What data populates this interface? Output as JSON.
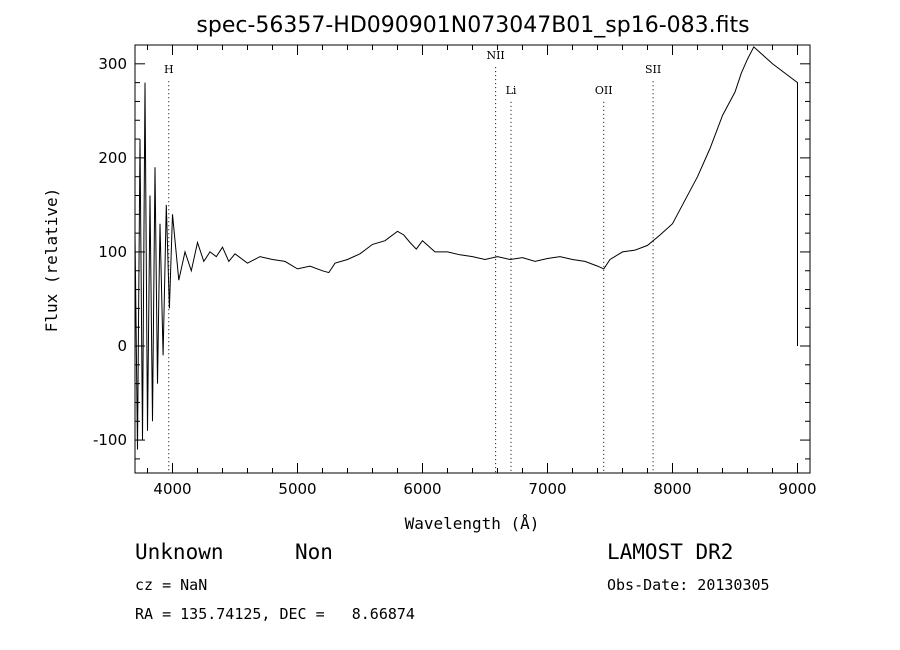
{
  "chart_data": {
    "type": "line",
    "title": "spec-56357-HD090901N073047B01_sp16-083.fits",
    "xlabel": "Wavelength (Å)",
    "ylabel": "Flux (relative)",
    "xlim": [
      3700,
      9100
    ],
    "ylim": [
      -135,
      320
    ],
    "x_ticks": [
      4000,
      5000,
      6000,
      7000,
      8000,
      9000
    ],
    "y_ticks": [
      -100,
      0,
      100,
      200,
      300
    ],
    "grid": false,
    "line_color": "#000000",
    "series": [
      {
        "x": [
          3700,
          3720,
          3740,
          3760,
          3780,
          3800,
          3820,
          3840,
          3860,
          3880,
          3900,
          3925,
          3950,
          3975,
          4000,
          4050,
          4100,
          4150,
          4200,
          4250,
          4300,
          4350,
          4400,
          4450,
          4500,
          4600,
          4700,
          4800,
          4900,
          5000,
          5100,
          5200,
          5250,
          5300,
          5400,
          5500,
          5600,
          5700,
          5800,
          5850,
          5900,
          5950,
          6000,
          6100,
          6200,
          6300,
          6400,
          6500,
          6600,
          6700,
          6800,
          6900,
          7000,
          7100,
          7200,
          7300,
          7400,
          7450,
          7500,
          7600,
          7700,
          7800,
          7900,
          8000,
          8100,
          8200,
          8300,
          8400,
          8500,
          8550,
          8600,
          8650,
          8700,
          8800,
          9000,
          9000
        ],
        "y": [
          120,
          -110,
          220,
          -100,
          280,
          -90,
          160,
          -80,
          190,
          -40,
          130,
          -10,
          150,
          40,
          140,
          70,
          100,
          80,
          110,
          90,
          100,
          95,
          105,
          90,
          98,
          88,
          95,
          92,
          90,
          82,
          85,
          80,
          78,
          88,
          92,
          98,
          108,
          112,
          122,
          118,
          110,
          103,
          112,
          100,
          100,
          97,
          95,
          92,
          95,
          92,
          94,
          90,
          93,
          95,
          92,
          90,
          85,
          82,
          92,
          100,
          102,
          107,
          118,
          130,
          155,
          180,
          210,
          245,
          270,
          290,
          305,
          318,
          312,
          300,
          280,
          0
        ]
      }
    ],
    "annotations": [
      {
        "label": "H",
        "x": 3970,
        "y": 290
      },
      {
        "label": "NII",
        "x": 6585,
        "y": 305
      },
      {
        "label": "Li",
        "x": 6708,
        "y": 268
      },
      {
        "label": "OII",
        "x": 7450,
        "y": 268
      },
      {
        "label": "SII",
        "x": 7845,
        "y": 290
      }
    ]
  },
  "footer": {
    "object_type": "Unknown",
    "object_class": "Non",
    "survey": "LAMOST DR2",
    "cz": "cz = NaN",
    "obs_date": "Obs-Date: 20130305",
    "coords": "RA = 135.74125, DEC =   8.66874"
  }
}
